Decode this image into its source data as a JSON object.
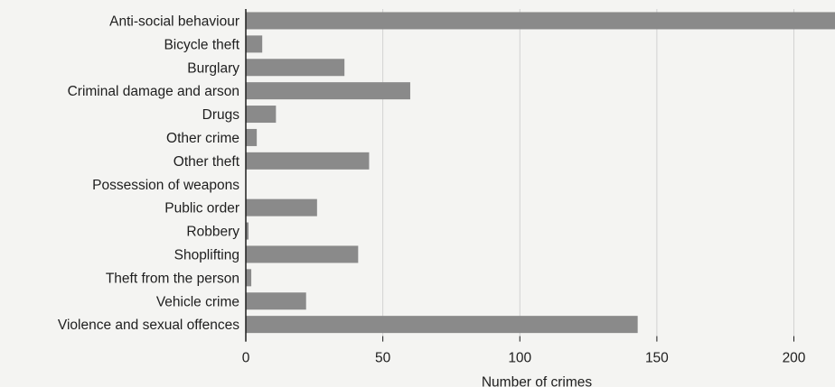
{
  "chart_data": {
    "type": "bar",
    "orientation": "horizontal",
    "categories": [
      "Anti-social behaviour",
      "Bicycle theft",
      "Burglary",
      "Criminal damage and arson",
      "Drugs",
      "Other crime",
      "Other theft",
      "Possession of weapons",
      "Public order",
      "Robbery",
      "Shoplifting",
      "Theft from the person",
      "Vehicle crime",
      "Violence and sexual offences"
    ],
    "values": [
      215,
      6,
      36,
      60,
      11,
      4,
      45,
      0,
      26,
      1,
      41,
      2,
      22,
      143
    ],
    "xlabel": "Number of crimes",
    "ylabel": "",
    "xlim": [
      0,
      215
    ],
    "xticks": [
      0,
      50,
      100,
      150,
      200
    ],
    "grid": true,
    "colors": {
      "bar": "#8a8a8a",
      "grid": "#d2d2d2",
      "text": "#1e1e1e"
    }
  }
}
